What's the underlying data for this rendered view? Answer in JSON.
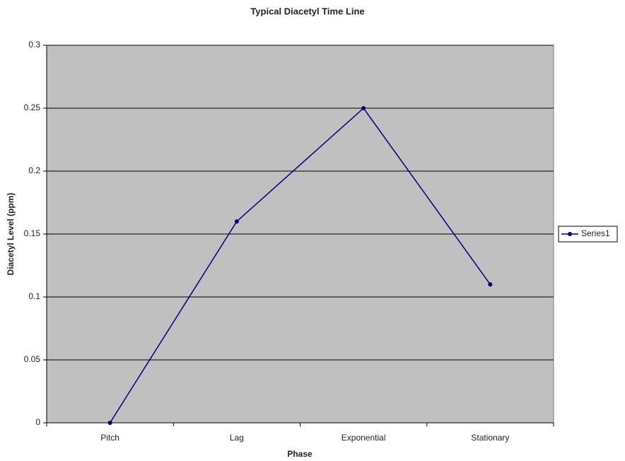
{
  "chart_data": {
    "type": "line",
    "title": "Typical Diacetyl Time Line",
    "x_label": "Phase",
    "y_label": "Diacetyl Level (ppm)",
    "categories": [
      "Pitch",
      "Lag",
      "Exponential",
      "Stationary"
    ],
    "series": [
      {
        "name": "Series1",
        "color": "#000080",
        "values": [
          0,
          0.16,
          0.25,
          0.11
        ]
      }
    ],
    "ylim": [
      0,
      0.3
    ],
    "yticks": [
      0,
      0.05,
      0.1,
      0.15,
      0.2,
      0.25,
      0.3
    ],
    "grid": true,
    "legend": "right",
    "plot_background": "#c0c0c0"
  }
}
